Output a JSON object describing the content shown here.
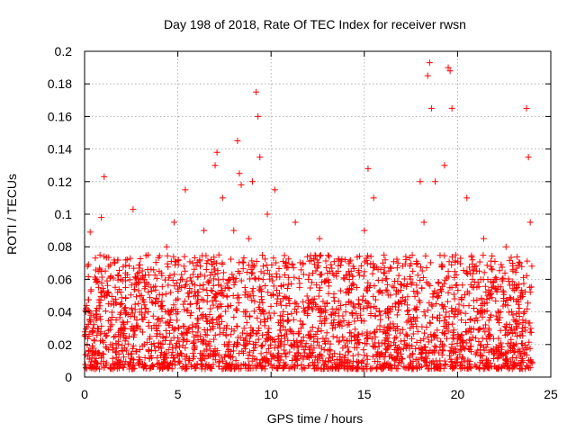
{
  "chart_data": {
    "type": "scatter",
    "title": "Day 198 of 2018, Rate Of TEC Index for receiver rwsn",
    "xlabel": "GPS time / hours",
    "ylabel": "ROTI / TECUs",
    "xlim": [
      0,
      25
    ],
    "ylim": [
      0,
      0.2
    ],
    "x_ticks": [
      "0",
      "5",
      "10",
      "15",
      "20",
      "25"
    ],
    "y_ticks": [
      "0",
      "0.02",
      "0.04",
      "0.06",
      "0.08",
      "0.1",
      "0.12",
      "0.14",
      "0.16",
      "0.18",
      "0.2"
    ],
    "grid": true,
    "marker": "+",
    "color": "#ff0000",
    "series": [
      {
        "x": [
          0.05,
          0.15,
          0.3,
          0.45,
          0.6,
          0.75,
          0.9,
          1.05,
          1.2,
          1.4,
          1.6,
          1.8,
          2.0,
          2.2,
          2.4,
          2.6,
          2.8,
          3.0,
          3.2,
          3.4,
          3.6,
          3.8,
          4.0,
          4.2,
          4.4,
          4.6,
          4.8,
          5.0,
          5.2,
          5.4,
          5.6,
          5.8,
          6.0,
          6.2,
          6.4,
          6.6,
          6.8,
          7.0,
          7.1,
          7.2,
          7.4,
          7.6,
          7.8,
          8.0,
          8.2,
          8.3,
          8.4,
          8.6,
          8.8,
          9.0,
          9.2,
          9.3,
          9.4,
          9.6,
          9.8,
          10.0,
          10.2,
          10.5,
          10.8,
          11.0,
          11.3,
          11.6,
          12.0,
          12.3,
          12.6,
          13.0,
          13.3,
          13.6,
          14.0,
          14.3,
          14.6,
          15.0,
          15.2,
          15.5,
          15.8,
          16.0,
          16.3,
          16.6,
          17.0,
          17.3,
          17.6,
          18.0,
          18.2,
          18.4,
          18.5,
          18.6,
          18.8,
          19.0,
          19.3,
          19.5,
          19.6,
          19.7,
          19.9,
          20.2,
          20.5,
          20.8,
          21.1,
          21.4,
          21.7,
          22.0,
          22.3,
          22.6,
          22.9,
          23.2,
          23.5,
          23.7,
          23.8,
          23.9
        ],
        "y": [
          0.025,
          0.068,
          0.089,
          0.03,
          0.06,
          0.015,
          0.098,
          0.123,
          0.05,
          0.035,
          0.07,
          0.02,
          0.045,
          0.055,
          0.025,
          0.103,
          0.035,
          0.06,
          0.02,
          0.075,
          0.03,
          0.045,
          0.065,
          0.025,
          0.08,
          0.035,
          0.095,
          0.04,
          0.055,
          0.115,
          0.03,
          0.07,
          0.045,
          0.025,
          0.09,
          0.05,
          0.035,
          0.13,
          0.138,
          0.075,
          0.11,
          0.03,
          0.06,
          0.09,
          0.145,
          0.125,
          0.118,
          0.055,
          0.085,
          0.12,
          0.175,
          0.16,
          0.135,
          0.04,
          0.1,
          0.05,
          0.115,
          0.035,
          0.07,
          0.045,
          0.095,
          0.03,
          0.06,
          0.025,
          0.085,
          0.045,
          0.03,
          0.065,
          0.04,
          0.025,
          0.055,
          0.09,
          0.128,
          0.11,
          0.04,
          0.07,
          0.03,
          0.055,
          0.045,
          0.025,
          0.065,
          0.12,
          0.095,
          0.185,
          0.193,
          0.165,
          0.12,
          0.05,
          0.13,
          0.19,
          0.188,
          0.165,
          0.075,
          0.035,
          0.11,
          0.06,
          0.04,
          0.085,
          0.025,
          0.06,
          0.04,
          0.08,
          0.03,
          0.055,
          0.035,
          0.165,
          0.135,
          0.095
        ],
        "dense_band": {
          "x_range": [
            0,
            24
          ],
          "y_range": [
            0.005,
            0.075
          ]
        }
      }
    ]
  }
}
